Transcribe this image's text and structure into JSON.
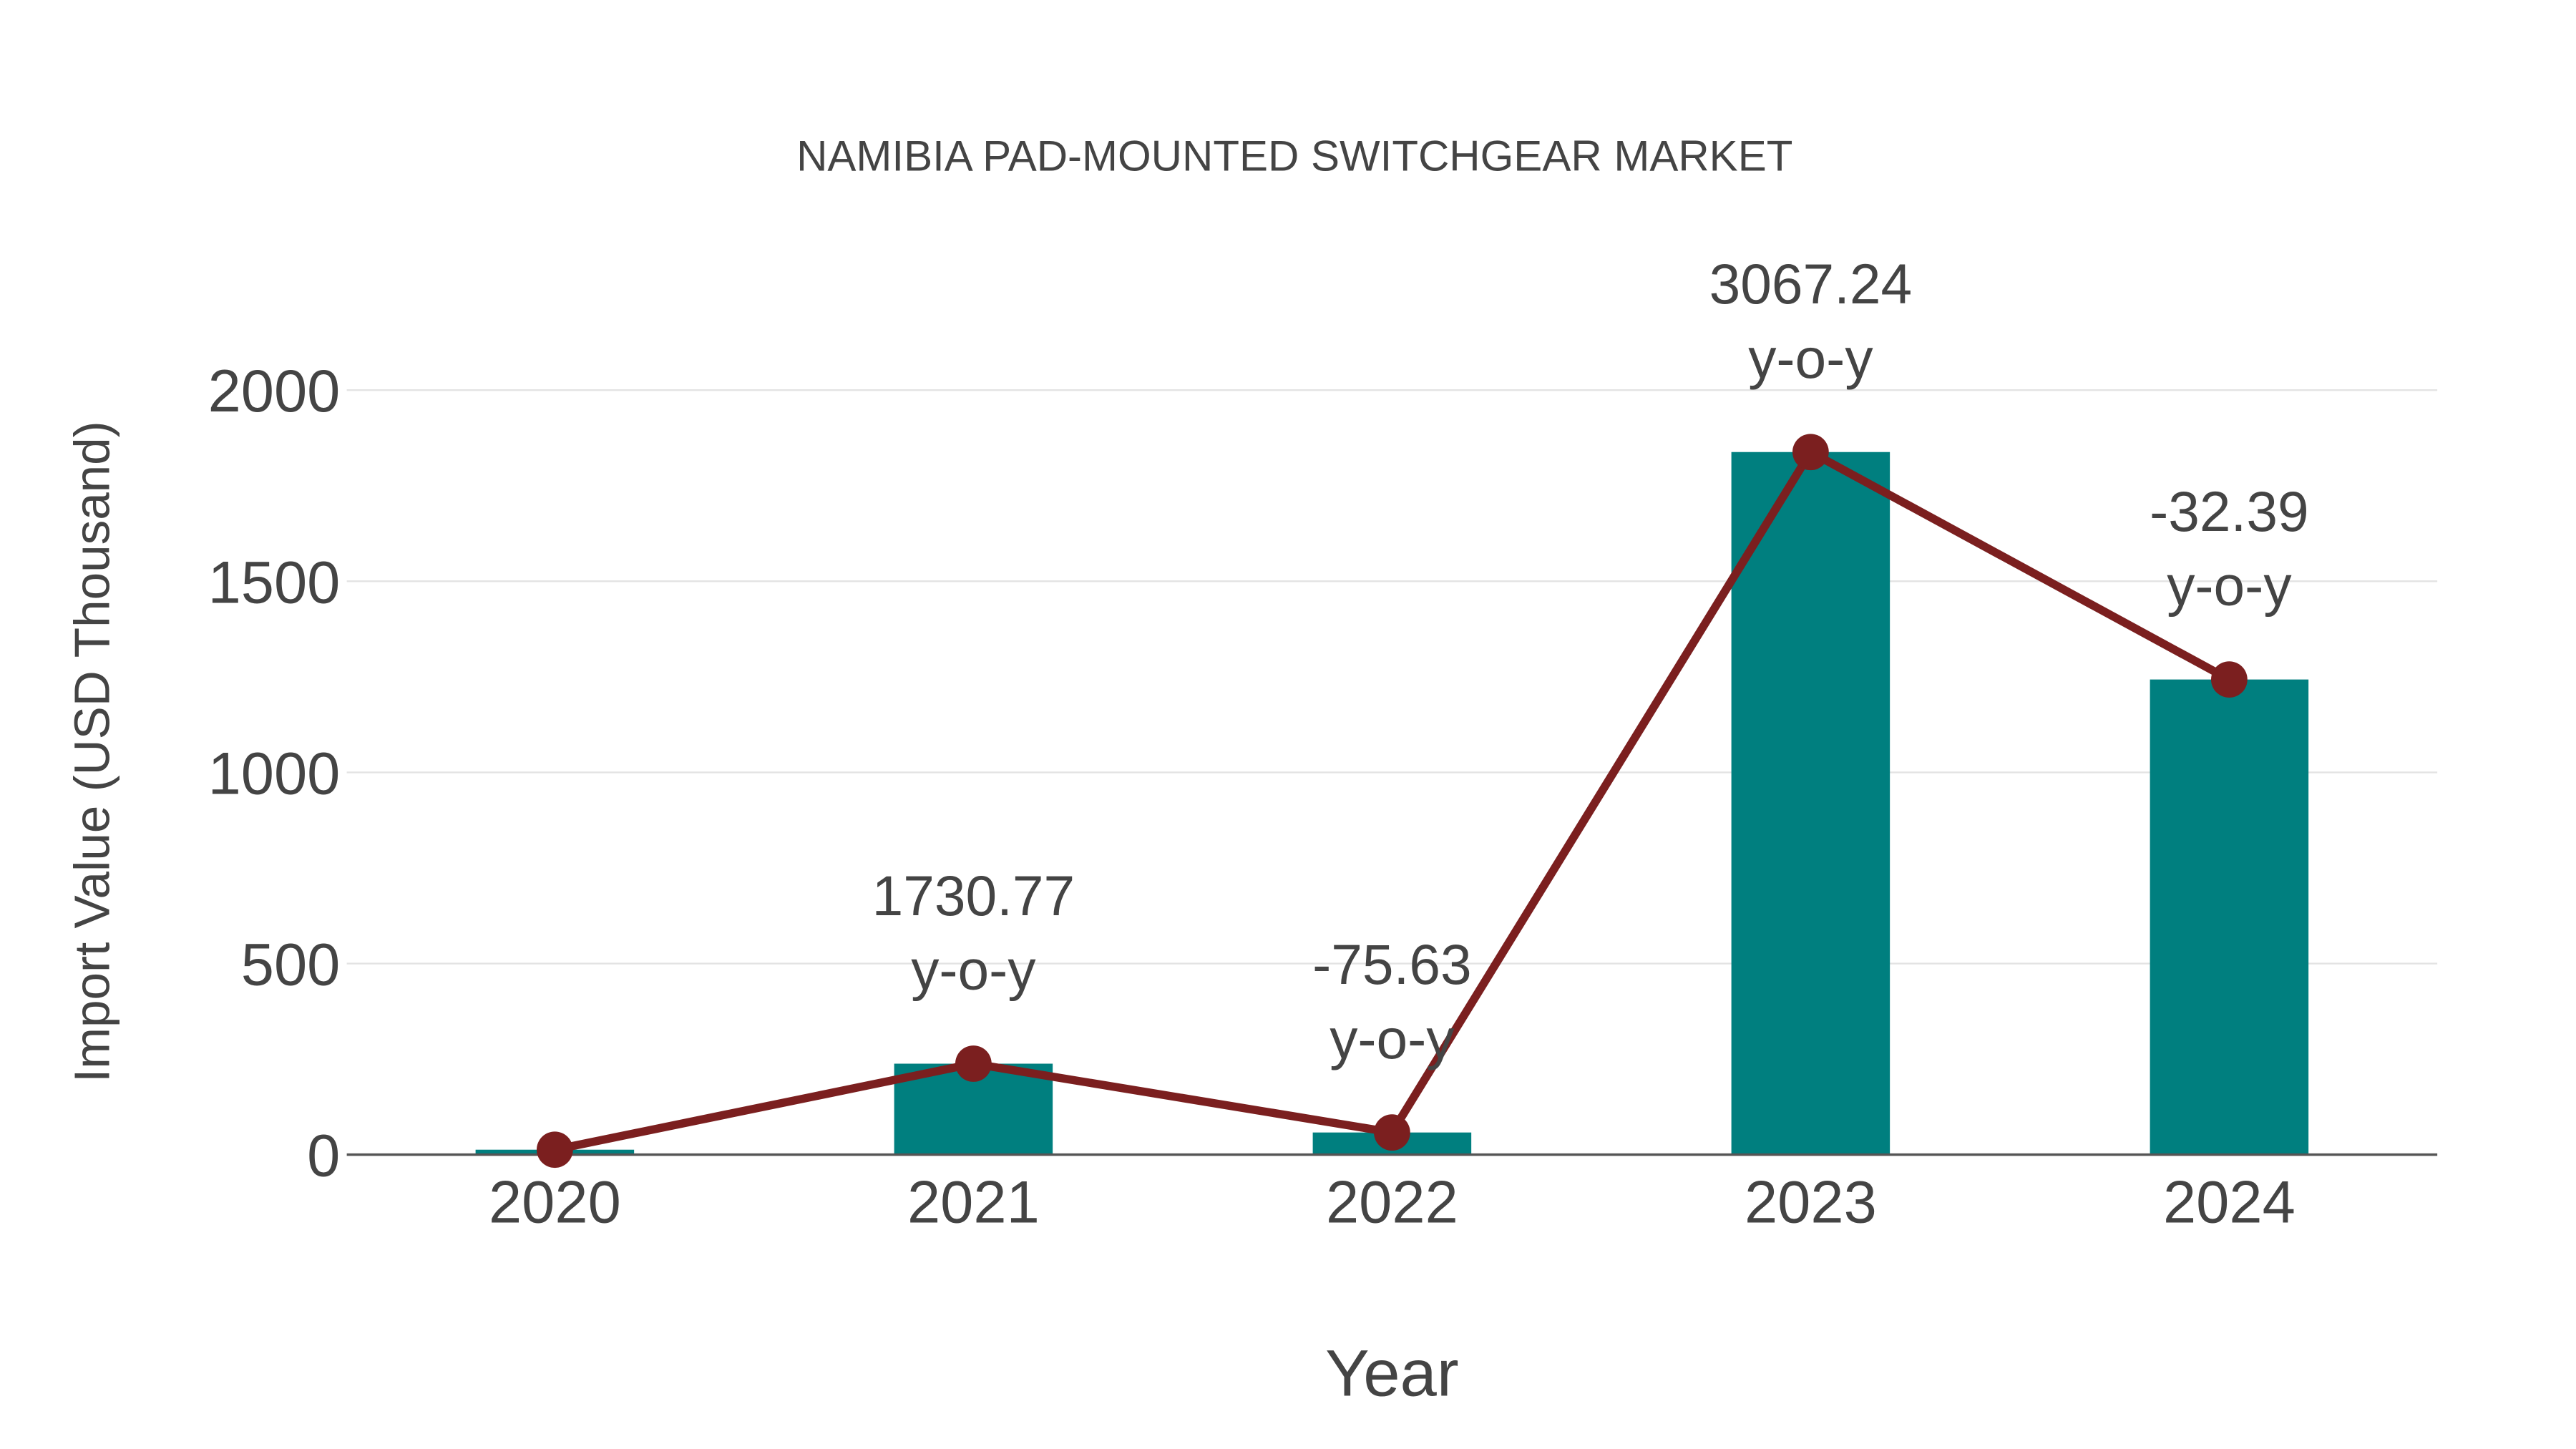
{
  "chart_data": {
    "type": "bar",
    "title": "NAMIBIA PAD-MOUNTED SWITCHGEAR MARKET",
    "xlabel": "Year",
    "ylabel": "Import Value (USD Thousand)",
    "categories": [
      "2020",
      "2021",
      "2022",
      "2023",
      "2024"
    ],
    "series": [
      {
        "name": "Import Value",
        "type": "bar",
        "values": [
          13,
          238,
          58,
          1838,
          1243
        ],
        "color": "#007f7f"
      },
      {
        "name": "Trend",
        "type": "line",
        "values": [
          13,
          238,
          58,
          1838,
          1243
        ],
        "color": "#7b1f1f"
      }
    ],
    "annotations": [
      "",
      "1730.77\ny-o-y",
      "-75.63\ny-o-y",
      "3067.24\ny-o-y",
      "-32.39\ny-o-y"
    ],
    "yticks": [
      "0",
      "500",
      "1000",
      "1500",
      "2000"
    ],
    "ytick_values": [
      0,
      500,
      1000,
      1500,
      2000
    ],
    "ylim": [
      0,
      2000
    ],
    "grid": true
  }
}
